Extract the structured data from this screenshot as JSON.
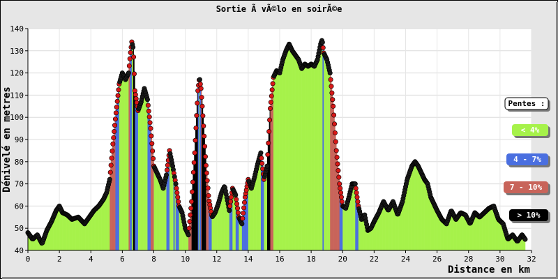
{
  "chart_data": {
    "type": "area",
    "title": "Sortie Ã  vÃ©lo en soirÃ©e",
    "xlabel": "Distance en km",
    "ylabel": "Dénivelé en metres",
    "xlim": [
      0,
      32
    ],
    "ylim": [
      40,
      140
    ],
    "x_ticks": [
      "0",
      "2",
      "4",
      "6",
      "8",
      "10",
      "12",
      "14",
      "16",
      "18",
      "20",
      "22",
      "24",
      "26",
      "28",
      "30",
      "32"
    ],
    "y_ticks": [
      "40",
      "50",
      "60",
      "70",
      "80",
      "90",
      "100",
      "110",
      "120",
      "130",
      "140"
    ],
    "grid": true,
    "legend": {
      "placement": "right",
      "title": "Pentes :",
      "items": [
        {
          "label": "< 4%",
          "color": "#a6f24a",
          "text_color": "#ffffff"
        },
        {
          "label": "4 - 7%",
          "color": "#4a6fe0",
          "text_color": "#ffffff"
        },
        {
          "label": "7 - 10%",
          "color": "#c8645a",
          "text_color": "#ffffff"
        },
        {
          "label": "> 10%",
          "color": "#000000",
          "text_color": "#ffffff"
        }
      ]
    },
    "series": [
      {
        "x": [
          0,
          0.3,
          0.6,
          0.9,
          1.2,
          1.5,
          1.8,
          2.0,
          2.2,
          2.5,
          2.8,
          3.2,
          3.6,
          3.9,
          4.2,
          4.5,
          4.8,
          5.0,
          5.2,
          5.4,
          5.6,
          5.8,
          6.0,
          6.2,
          6.4,
          6.5,
          6.6,
          6.7,
          6.8,
          7.0,
          7.2,
          7.4,
          7.6,
          7.8,
          8.0,
          8.2,
          8.4,
          8.6,
          8.8,
          9.0,
          9.2,
          9.4,
          9.6,
          9.8,
          10.0,
          10.2,
          10.4,
          10.6,
          10.8,
          10.9,
          11.0,
          11.1,
          11.3,
          11.5,
          11.7,
          11.9,
          12.1,
          12.3,
          12.5,
          12.8,
          13.0,
          13.2,
          13.4,
          13.6,
          13.8,
          14.0,
          14.2,
          14.4,
          14.6,
          14.8,
          15.0,
          15.2,
          15.4,
          15.6,
          15.8,
          16.0,
          16.2,
          16.4,
          16.6,
          16.8,
          17.0,
          17.2,
          17.4,
          17.6,
          17.8,
          18.0,
          18.2,
          18.4,
          18.6,
          18.7,
          18.8,
          19.0,
          19.2,
          19.4,
          19.6,
          19.8,
          20.0,
          20.2,
          20.4,
          20.6,
          20.8,
          21.0,
          21.2,
          21.4,
          21.6,
          21.8,
          22.0,
          22.3,
          22.6,
          22.9,
          23.2,
          23.5,
          23.8,
          24.1,
          24.4,
          24.6,
          24.8,
          25.0,
          25.2,
          25.4,
          25.6,
          25.8,
          26.0,
          26.3,
          26.6,
          26.9,
          27.2,
          27.5,
          27.8,
          28.1,
          28.4,
          28.7,
          29.0,
          29.3,
          29.6,
          29.9,
          30.2,
          30.5,
          30.8,
          31.1,
          31.4,
          31.6
        ],
        "y": [
          48,
          45,
          47,
          43,
          49,
          53,
          58,
          60,
          57,
          56,
          54,
          55,
          52,
          55,
          58,
          60,
          63,
          66,
          72,
          88,
          102,
          115,
          120,
          117,
          120,
          128,
          134,
          131,
          112,
          103,
          107,
          113,
          108,
          95,
          78,
          75,
          72,
          68,
          74,
          85,
          78,
          70,
          60,
          57,
          50,
          47,
          62,
          84,
          112,
          118,
          113,
          103,
          80,
          63,
          55,
          57,
          61,
          66,
          69,
          58,
          68,
          65,
          55,
          52,
          64,
          72,
          68,
          73,
          79,
          84,
          72,
          78,
          104,
          118,
          121,
          120,
          126,
          130,
          133,
          130,
          128,
          126,
          122,
          124,
          123,
          124,
          123,
          126,
          133,
          135,
          129,
          126,
          120,
          105,
          85,
          70,
          60,
          59,
          64,
          70,
          70,
          60,
          54,
          56,
          49,
          50,
          53,
          57,
          62,
          58,
          62,
          56,
          62,
          72,
          78,
          80,
          78,
          75,
          72,
          70,
          64,
          61,
          58,
          54,
          52,
          58,
          54,
          57,
          56,
          52,
          57,
          55,
          57,
          59,
          60,
          54,
          52,
          45,
          47,
          44,
          47,
          45
        ]
      }
    ]
  }
}
